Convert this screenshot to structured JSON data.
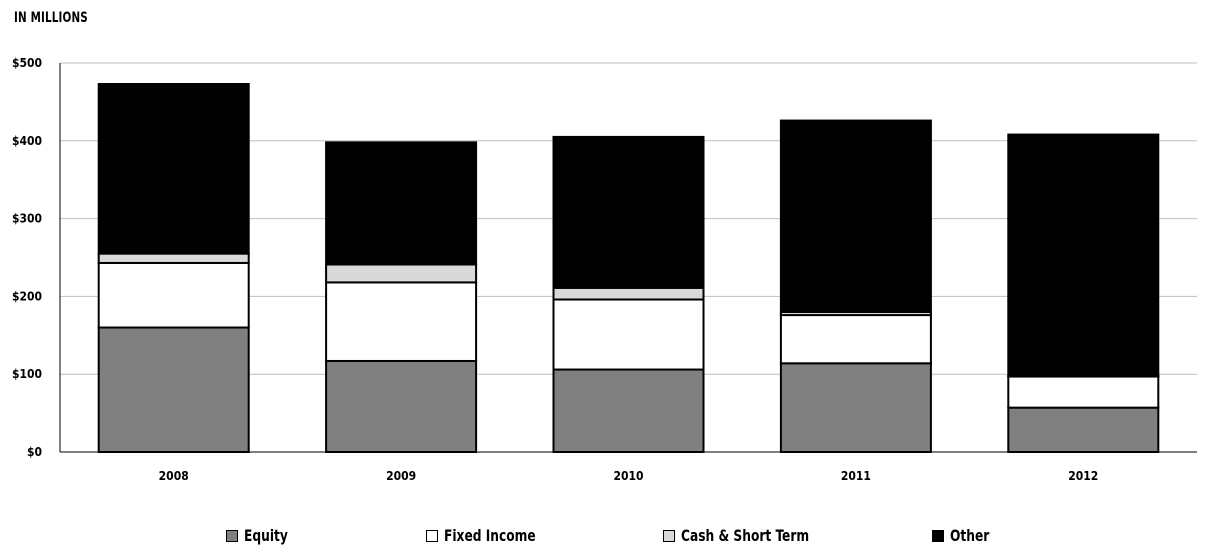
{
  "chart_data": {
    "type": "bar",
    "stacked": true,
    "ylabel": "IN MILLIONS",
    "categories": [
      "2008",
      "2009",
      "2010",
      "2011",
      "2012"
    ],
    "ylim": [
      0,
      500
    ],
    "yticks": [
      0,
      100,
      200,
      300,
      400,
      500
    ],
    "ytick_labels": [
      "$0",
      "$100",
      "$200",
      "$300",
      "$400",
      "$500"
    ],
    "grid": true,
    "legend_position": "bottom",
    "series": [
      {
        "name": "Equity",
        "color": "#808080",
        "values": [
          160,
          117,
          106,
          114,
          57
        ]
      },
      {
        "name": "Fixed Income",
        "color": "#ffffff",
        "values": [
          83,
          101,
          90,
          62,
          40
        ]
      },
      {
        "name": "Cash & Short Term",
        "color": "#d9d9d9",
        "values": [
          12,
          23,
          15,
          4,
          1
        ]
      },
      {
        "name": "Other",
        "color": "#000000",
        "values": [
          218,
          157,
          194,
          246,
          310
        ]
      }
    ]
  }
}
